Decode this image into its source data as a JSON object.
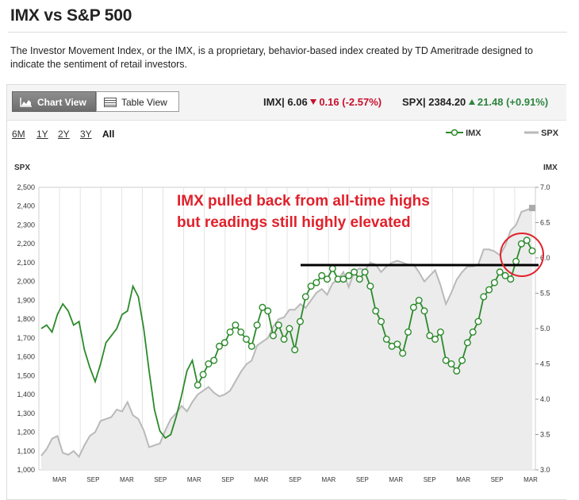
{
  "page": {
    "title": "IMX vs S&P 500",
    "description": "The Investor Movement Index, or the IMX, is a proprietary, behavior-based index created by TD Ameritrade designed to indicate the sentiment of retail investors."
  },
  "toolbar": {
    "chart_view_label": "Chart View",
    "table_view_label": "Table View",
    "imx": {
      "label": "IMX|",
      "value": "6.06",
      "change": "0.16",
      "pct": "(-2.57%)",
      "direction": "down"
    },
    "spx": {
      "label": "SPX|",
      "value": "2384.20",
      "change": "21.48",
      "pct": "(+0.91%)",
      "direction": "up"
    }
  },
  "ranges": [
    "6M",
    "1Y",
    "2Y",
    "3Y",
    "All"
  ],
  "selected_range": "All",
  "legend": {
    "imx": "IMX",
    "spx": "SPX"
  },
  "annotation": {
    "line1": "IMX pulled back from all-time highs",
    "line2": "but readings still highly elevated"
  },
  "colors": {
    "imx": "#2b8a2b",
    "spx": "#b9b9b9",
    "spx_fill": "#ececec",
    "annotation": "#e0212b"
  },
  "chart_data": {
    "type": "line",
    "x_tick_labels": [
      "MAR",
      "SEP",
      "MAR",
      "SEP",
      "MAR",
      "SEP",
      "MAR",
      "SEP",
      "MAR",
      "SEP",
      "MAR",
      "SEP",
      "MAR",
      "SEP",
      "MAR"
    ],
    "left_axis": {
      "title": "SPX",
      "min": 1000,
      "max": 2500,
      "ticks": [
        "1,000",
        "1,100",
        "1,200",
        "1,300",
        "1,400",
        "1,500",
        "1,600",
        "1,700",
        "1,800",
        "1,900",
        "2,000",
        "2,100",
        "2,200",
        "2,300",
        "2,400",
        "2,500"
      ]
    },
    "right_axis": {
      "title": "IMX",
      "min": 3.0,
      "max": 7.0,
      "ticks": [
        "3.0",
        "3.5",
        "4.0",
        "4.5",
        "5.0",
        "5.5",
        "6.0",
        "6.5",
        "7.0"
      ]
    },
    "series": [
      {
        "name": "SPX",
        "axis": "left",
        "style": "area",
        "values": [
          1075,
          1110,
          1165,
          1180,
          1090,
          1080,
          1100,
          1070,
          1130,
          1180,
          1200,
          1260,
          1270,
          1280,
          1320,
          1310,
          1360,
          1290,
          1270,
          1210,
          1120,
          1130,
          1140,
          1210,
          1270,
          1300,
          1340,
          1310,
          1360,
          1400,
          1420,
          1440,
          1410,
          1390,
          1400,
          1420,
          1470,
          1520,
          1560,
          1580,
          1660,
          1680,
          1700,
          1760,
          1800,
          1810,
          1850,
          1850,
          1880,
          1860,
          1900,
          1940,
          1960,
          1930,
          1990,
          2010,
          2050,
          1970,
          2050,
          2070,
          2060,
          2100,
          2090,
          2050,
          2080,
          2100,
          2110,
          2100,
          2090,
          2090,
          2050,
          2000,
          2030,
          2060,
          1980,
          1880,
          1940,
          2010,
          2050,
          2080,
          2080,
          2090,
          2170,
          2170,
          2160,
          2140,
          2190,
          2270,
          2300,
          2370,
          2380,
          2390
        ]
      },
      {
        "name": "IMX",
        "axis": "right",
        "style": "line",
        "values": [
          5.0,
          5.05,
          4.95,
          5.2,
          5.35,
          5.25,
          5.05,
          5.1,
          4.7,
          4.45,
          4.25,
          4.5,
          4.8,
          4.9,
          5.0,
          5.2,
          5.25,
          5.6,
          5.45,
          5.0,
          4.4,
          3.85,
          3.55,
          3.45,
          3.5,
          3.75,
          4.05,
          4.4,
          4.55,
          4.2,
          4.35,
          4.5,
          4.55,
          4.75,
          4.8,
          4.95,
          5.05,
          4.95,
          4.85,
          4.75,
          5.05,
          5.3,
          5.25,
          4.9,
          5.05,
          4.85,
          5.0,
          4.7,
          5.1,
          5.45,
          5.6,
          5.65,
          5.75,
          5.7,
          5.85,
          5.7,
          5.7,
          5.75,
          5.8,
          5.7,
          5.8,
          5.6,
          5.25,
          5.1,
          4.85,
          4.75,
          4.78,
          4.65,
          4.95,
          5.3,
          5.4,
          5.25,
          4.9,
          4.85,
          4.95,
          4.55,
          4.5,
          4.4,
          4.55,
          4.8,
          4.95,
          5.1,
          5.45,
          5.55,
          5.65,
          5.8,
          5.75,
          5.7,
          5.95,
          6.2,
          6.25,
          6.1
        ],
        "markers_from_index": 29
      }
    ]
  }
}
